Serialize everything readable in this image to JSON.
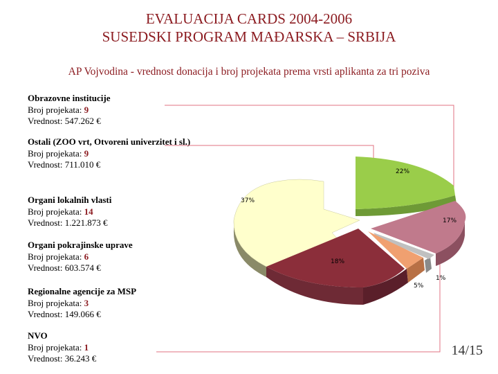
{
  "header": {
    "title_line1": "EVALUACIJA CARDS 2004-2006",
    "title_line2": "SUSEDSKI PROGRAM MAĐARSKA – SRBIJA",
    "subtitle": "AP Vojvodina - vrednost donacija i broj projekata prema vrsti aplikanta za tri poziva"
  },
  "categories": [
    {
      "name": "Obrazovne institucije",
      "count_label": "Broj projekata:",
      "count": "9",
      "value_label": "Vrednost: 547.262 €"
    },
    {
      "name": "Ostali (ZOO vrt, Otvoreni univerzitet i sl.)",
      "count_label": "Broj projekata:",
      "count": "9",
      "value_label": "Vrednost: 711.010 €"
    },
    {
      "name": "Organi lokalnih vlasti",
      "count_label": "Broj projekata:",
      "count": "14",
      "value_label": "Vrednost: 1.221.873 €"
    },
    {
      "name": "Organi pokrajinske uprave",
      "count_label": "Broj projekata:",
      "count": "6",
      "value_label": "Vrednost: 603.574 €"
    },
    {
      "name": "Regionalne agencije za MSP",
      "count_label": "Broj projekata:",
      "count": "3",
      "value_label": "Vrednost: 149.066 €"
    },
    {
      "name": "NVO",
      "count_label": "Broj projekata:",
      "count": "1",
      "value_label": "Vrednost: 36.243 €"
    }
  ],
  "page_number": "14/15",
  "chart_data": {
    "type": "pie",
    "categories": [
      "Obrazovne institucije",
      "Ostali (ZOO vrt, Otvoreni univerzitet i sl.)",
      "Organi lokalnih vlasti",
      "Organi pokrajinske uprave",
      "Regionalne agencije za MSP",
      "NVO"
    ],
    "values": [
      547262,
      711010,
      1221873,
      603574,
      149066,
      36243
    ],
    "percent_labels": [
      "17%",
      "22%",
      "37%",
      "18%",
      "5%",
      "1%"
    ],
    "colors": {
      "ostali": "#9acd4a",
      "obrazovne": "#c07a8c",
      "nvo": "#c0c0c0",
      "regionalne": "#f0a070",
      "pokrajinske": "#8b2e3a",
      "lokalnih": "#ffffcc",
      "connector": "#e07080"
    }
  }
}
